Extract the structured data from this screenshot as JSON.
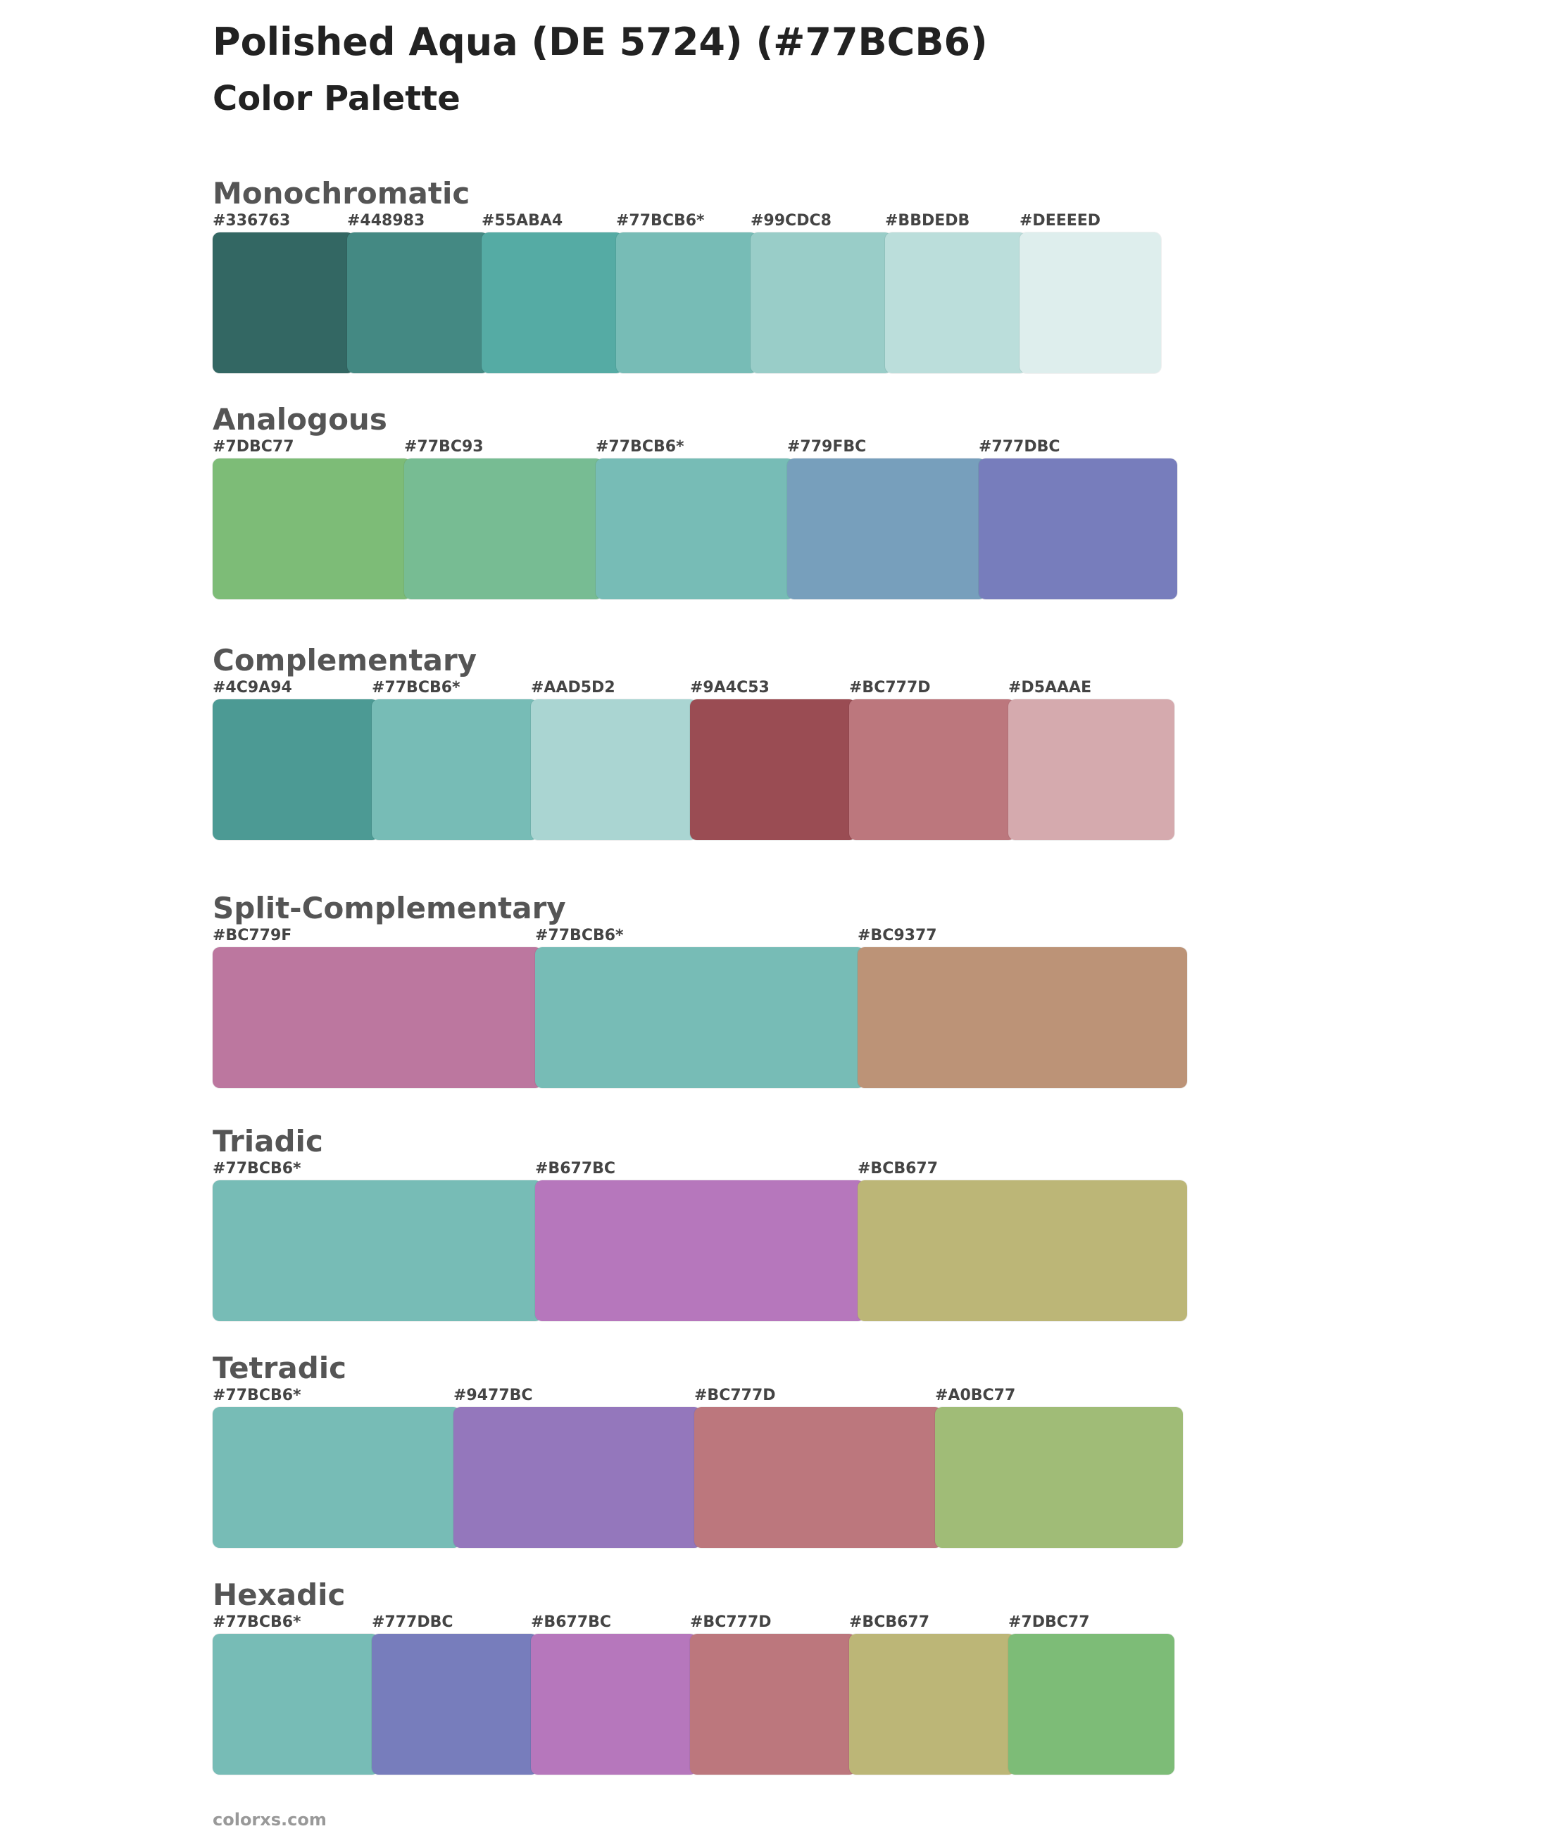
{
  "header": {
    "title": "Polished Aqua (DE 5724) (#77BCB6)",
    "subtitle": "Color Palette"
  },
  "sections": [
    {
      "name": "Monochromatic",
      "swatches": [
        {
          "label": "#336763",
          "color": "#336763"
        },
        {
          "label": "#448983",
          "color": "#448983"
        },
        {
          "label": "#55ABA4",
          "color": "#55ABA4"
        },
        {
          "label": "#77BCB6*",
          "color": "#77BCB6"
        },
        {
          "label": "#99CDC8",
          "color": "#99CDC8"
        },
        {
          "label": "#BBDEDB",
          "color": "#BBDEDB"
        },
        {
          "label": "#DEEEED",
          "color": "#DEEEED"
        }
      ]
    },
    {
      "name": "Analogous",
      "swatches": [
        {
          "label": "#7DBC77",
          "color": "#7DBC77"
        },
        {
          "label": "#77BC93",
          "color": "#77BC93"
        },
        {
          "label": "#77BCB6*",
          "color": "#77BCB6"
        },
        {
          "label": "#779FBC",
          "color": "#779FBC"
        },
        {
          "label": "#777DBC",
          "color": "#777DBC"
        }
      ]
    },
    {
      "name": "Complementary",
      "swatches": [
        {
          "label": "#4C9A94",
          "color": "#4C9A94"
        },
        {
          "label": "#77BCB6*",
          "color": "#77BCB6"
        },
        {
          "label": "#AAD5D2",
          "color": "#AAD5D2"
        },
        {
          "label": "#9A4C53",
          "color": "#9A4C53"
        },
        {
          "label": "#BC777D",
          "color": "#BC777D"
        },
        {
          "label": "#D5AAAE",
          "color": "#D5AAAE"
        }
      ]
    },
    {
      "name": "Split-Complementary",
      "swatches": [
        {
          "label": "#BC779F",
          "color": "#BC779F"
        },
        {
          "label": "#77BCB6*",
          "color": "#77BCB6"
        },
        {
          "label": "#BC9377",
          "color": "#BC9377"
        }
      ]
    },
    {
      "name": "Triadic",
      "swatches": [
        {
          "label": "#77BCB6*",
          "color": "#77BCB6"
        },
        {
          "label": "#B677BC",
          "color": "#B677BC"
        },
        {
          "label": "#BCB677",
          "color": "#BCB677"
        }
      ]
    },
    {
      "name": "Tetradic",
      "swatches": [
        {
          "label": "#77BCB6*",
          "color": "#77BCB6"
        },
        {
          "label": "#9477BC",
          "color": "#9477BC"
        },
        {
          "label": "#BC777D",
          "color": "#BC777D"
        },
        {
          "label": "#A0BC77",
          "color": "#A0BC77"
        }
      ]
    },
    {
      "name": "Hexadic",
      "swatches": [
        {
          "label": "#77BCB6*",
          "color": "#77BCB6"
        },
        {
          "label": "#777DBC",
          "color": "#777DBC"
        },
        {
          "label": "#B677BC",
          "color": "#B677BC"
        },
        {
          "label": "#BC777D",
          "color": "#BC777D"
        },
        {
          "label": "#BCB677",
          "color": "#BCB677"
        },
        {
          "label": "#7DBC77",
          "color": "#7DBC77"
        }
      ]
    }
  ],
  "footer": {
    "site": "colorxs.com"
  }
}
